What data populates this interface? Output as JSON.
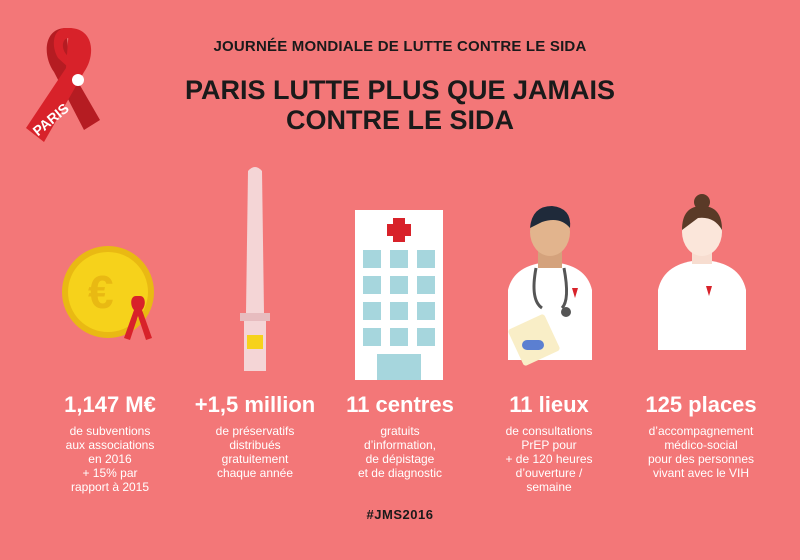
{
  "header": {
    "subtitle": "JOURNÉE MONDIALE DE LUTTE CONTRE LE SIDA",
    "title": "PARIS LUTTE PLUS QUE JAMAIS CONTRE LE SIDA"
  },
  "logo": {
    "text": "PARIS"
  },
  "stats": [
    {
      "value": "1,147 M€",
      "desc": "de subventions\naux associations\nen 2016\n+ 15% par\nrapport à 2015"
    },
    {
      "value": "+1,5 million",
      "desc": "de préservatifs\ndistribués\ngratuitement\nchaque année"
    },
    {
      "value": "11 centres",
      "desc": "gratuits\nd’information,\nde dépistage\net de diagnostic"
    },
    {
      "value": "11 lieux",
      "desc": "de consultations\nPrEP pour\n+ de 120 heures\nd’ouverture /\nsemaine"
    },
    {
      "value": "125 places",
      "desc": "d’accompagnement\nmédico-social\npour des personnes\nvivant avec le VIH"
    }
  ],
  "footer": {
    "hashtag": "#JMS2016"
  },
  "colors": {
    "background": "#f37778",
    "ribbon": "#d8222a",
    "coin": "#f6d21b"
  },
  "icons": [
    "aids-ribbon-logo",
    "euro-coin-icon",
    "obelisk-condom-icon",
    "hospital-icon",
    "doctor-icon",
    "nurse-icon"
  ]
}
